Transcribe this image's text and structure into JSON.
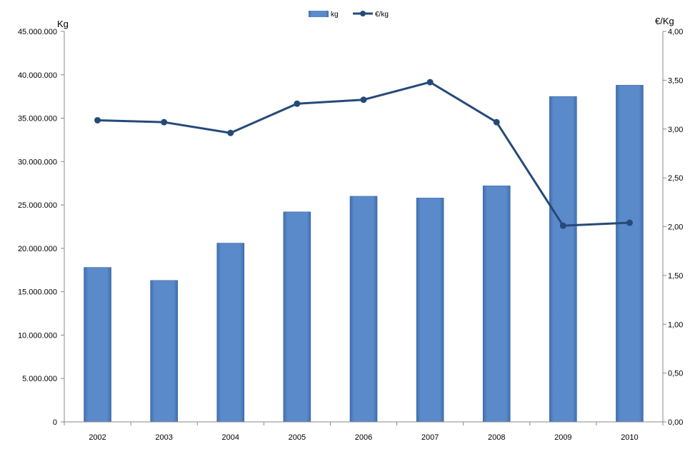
{
  "chart_data": {
    "type": "bar",
    "categories": [
      "2002",
      "2003",
      "2004",
      "2005",
      "2006",
      "2007",
      "2008",
      "2009",
      "2010"
    ],
    "series": [
      {
        "name": "kg",
        "kind": "bar",
        "axis": "left",
        "color": "#5B8ACB",
        "values": [
          17800000,
          16300000,
          20600000,
          24200000,
          26000000,
          25800000,
          27200000,
          37500000,
          38800000
        ]
      },
      {
        "name": "€/kg",
        "kind": "line",
        "axis": "right",
        "color": "#254A78",
        "values": [
          3.09,
          3.07,
          2.96,
          3.26,
          3.3,
          3.48,
          3.07,
          2.01,
          2.04
        ]
      }
    ],
    "ylabel": "Kg",
    "y2label": "€/Kg",
    "ylim": [
      0,
      45000000
    ],
    "y2lim": [
      0,
      4
    ],
    "y_ticks": [
      "0",
      "5.000.000",
      "10.000.000",
      "15.000.000",
      "20.000.000",
      "25.000.000",
      "30.000.000",
      "35.000.000",
      "40.000.000",
      "45.000.000"
    ],
    "y2_ticks": [
      "0,00",
      "0,50",
      "1,00",
      "1,50",
      "2,00",
      "2,50",
      "3,00",
      "3,50",
      "4,00"
    ],
    "grid": false,
    "legend": {
      "position": "top-center",
      "items": [
        "kg",
        "€/kg"
      ]
    }
  }
}
